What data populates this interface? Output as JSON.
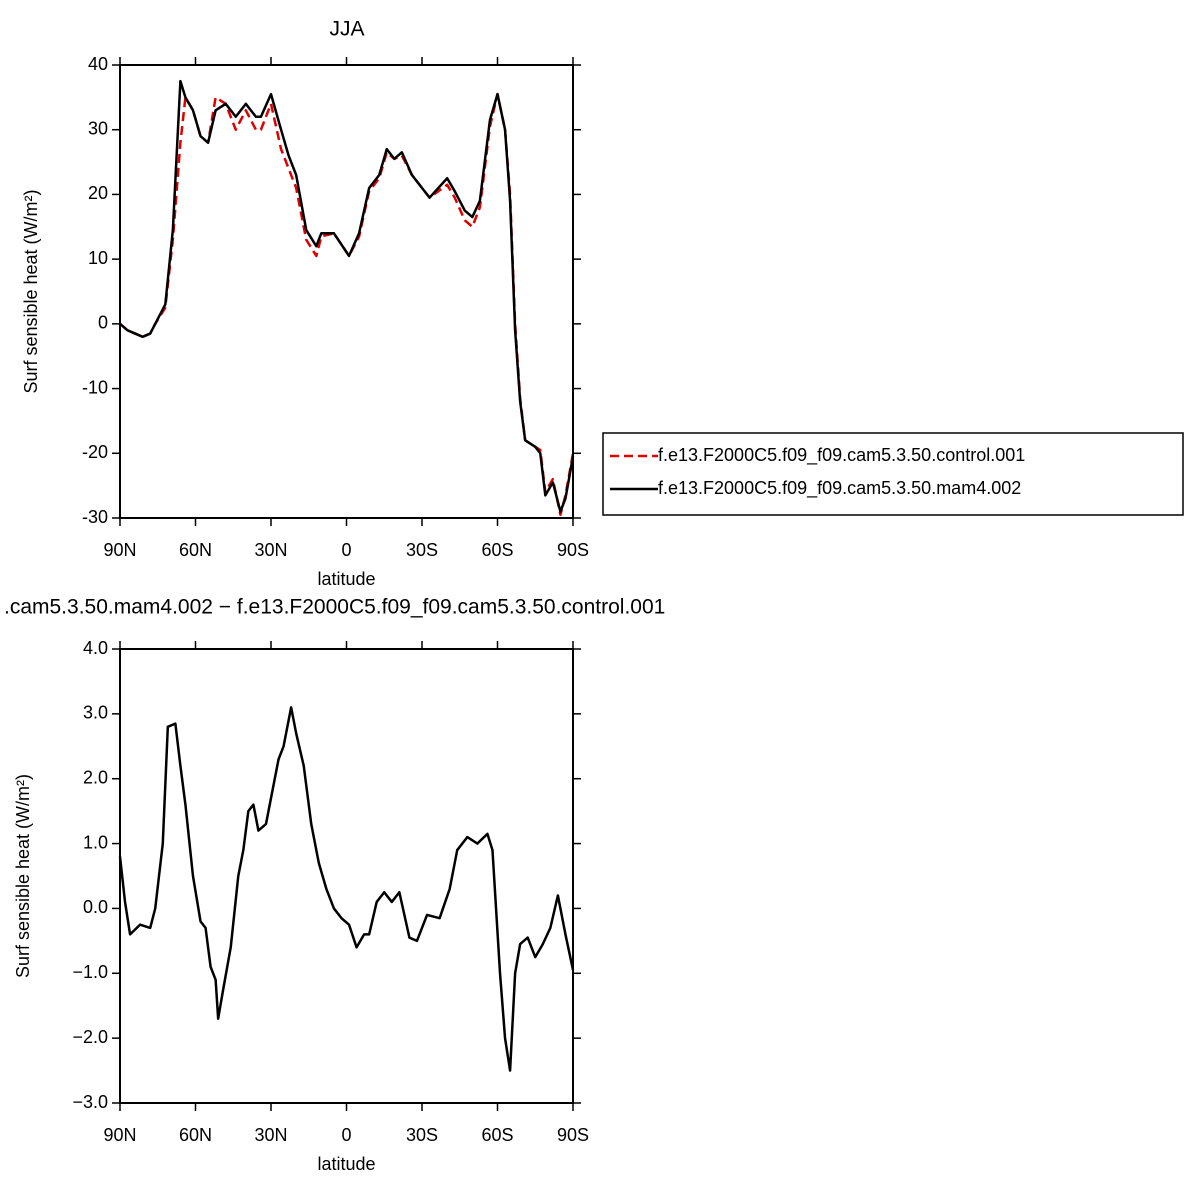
{
  "chart_data": [
    {
      "type": "line",
      "title": "JJA",
      "xlabel": "latitude",
      "ylabel": "Surf sensible heat (W/m²)",
      "xlim": [
        90,
        -90
      ],
      "ylim": [
        -30,
        40
      ],
      "xticks": [
        {
          "value": 90,
          "label": "90N"
        },
        {
          "value": 60,
          "label": "60N"
        },
        {
          "value": 30,
          "label": "30N"
        },
        0,
        {
          "value": -30,
          "label": "30S"
        },
        {
          "value": -60,
          "label": "60S"
        },
        {
          "value": -90,
          "label": "90S"
        }
      ],
      "yticks": [
        -30,
        -20,
        -10,
        0,
        10,
        20,
        30,
        40
      ],
      "legend": "outside-right",
      "x": [
        90,
        87,
        84,
        81,
        78,
        76,
        72,
        69,
        66,
        64,
        61,
        58,
        55,
        52,
        48,
        44,
        40,
        36,
        34,
        30,
        26,
        23,
        20,
        16,
        12,
        10,
        5,
        -1,
        -5,
        -9,
        -13,
        -16,
        -19,
        -22,
        -26,
        -33,
        -40,
        -43,
        -47,
        -50,
        -53,
        -57,
        -60,
        -63,
        -65,
        -67,
        -69,
        -71,
        -75,
        -77,
        -79,
        -82,
        -85,
        -87,
        -90
      ],
      "series": [
        {
          "name": "f.e13.F2000C5.f09_f09.cam5.3.50.control.001",
          "color": "#e00000",
          "dash": "dashed",
          "values": [
            0,
            -1,
            -1.5,
            -2,
            -1.5,
            0,
            2.5,
            13,
            28,
            35,
            33,
            29,
            28,
            35,
            34,
            30,
            33,
            30,
            30,
            34,
            27,
            24,
            21,
            13,
            10.5,
            13.5,
            14,
            10.5,
            13.5,
            20.5,
            22.5,
            26.5,
            25.5,
            26,
            23,
            19.5,
            21.5,
            19.5,
            16,
            15,
            18,
            30.5,
            35.5,
            30,
            20,
            0,
            -11.5,
            -18,
            -19,
            -19.5,
            -26,
            -24,
            -29.5,
            -26.5,
            -20
          ]
        },
        {
          "name": "f.e13.F2000C5.f09_f09.cam5.3.50.mam4.002",
          "color": "#000000",
          "dash": "solid",
          "values": [
            0,
            -1,
            -1.5,
            -2,
            -1.5,
            0,
            3,
            14.5,
            37.5,
            35,
            33,
            29,
            28,
            33,
            34,
            32,
            34,
            32,
            32,
            35.5,
            30,
            26,
            23,
            14.5,
            12,
            14,
            14,
            10.5,
            14,
            21,
            23,
            27,
            25.5,
            26.5,
            23,
            19.5,
            22.5,
            20.5,
            17.5,
            16.5,
            19,
            31.5,
            35.5,
            30,
            19,
            -1,
            -12,
            -18,
            -19,
            -20,
            -26.5,
            -24.5,
            -29,
            -27,
            -20.5
          ]
        }
      ]
    },
    {
      "type": "line",
      "title": ".cam5.3.50.mam4.002 − f.e13.F2000C5.f09_f09.cam5.3.50.control.001",
      "xlabel": "latitude",
      "ylabel": "Surf sensible heat (W/m²)",
      "xlim": [
        90,
        -90
      ],
      "ylim": [
        -3,
        4
      ],
      "xticks": [
        {
          "value": 90,
          "label": "90N"
        },
        {
          "value": 60,
          "label": "60N"
        },
        {
          "value": 30,
          "label": "30N"
        },
        0,
        {
          "value": -30,
          "label": "30S"
        },
        {
          "value": -60,
          "label": "60S"
        },
        {
          "value": -90,
          "label": "90S"
        }
      ],
      "yticks": [
        {
          "value": -3,
          "label": "−3.0"
        },
        {
          "value": -2,
          "label": "−2.0"
        },
        {
          "value": -1,
          "label": "−1.0"
        },
        {
          "value": 0,
          "label": "0.0"
        },
        {
          "value": 1,
          "label": "1.0"
        },
        {
          "value": 2,
          "label": "2.0"
        },
        {
          "value": 3,
          "label": "3.0"
        },
        {
          "value": 4,
          "label": "4.0"
        }
      ],
      "x": [
        90,
        88,
        86,
        82,
        78,
        76,
        73,
        71,
        68,
        66,
        64,
        61,
        58,
        56,
        54,
        52,
        51,
        49,
        46,
        43,
        41,
        39,
        37,
        35,
        32,
        30,
        27,
        25,
        22,
        20,
        17,
        14,
        11,
        8,
        5,
        2,
        -1,
        -4,
        -7,
        -9,
        -12,
        -15,
        -18,
        -21,
        -25,
        -28,
        -32,
        -37,
        -41,
        -44,
        -48,
        -52,
        -56,
        -58,
        -61,
        -63,
        -65,
        -67,
        -69,
        -72,
        -75,
        -78,
        -81,
        -84,
        -87,
        -90
      ],
      "series": [
        {
          "color": "#000000",
          "dash": "solid",
          "values": [
            0.8,
            0.1,
            -0.4,
            -0.25,
            -0.3,
            0,
            1.0,
            2.8,
            2.85,
            2.2,
            1.6,
            0.5,
            -0.2,
            -0.3,
            -0.9,
            -1.1,
            -1.7,
            -1.25,
            -0.6,
            0.5,
            0.9,
            1.5,
            1.6,
            1.2,
            1.3,
            1.7,
            2.3,
            2.5,
            3.1,
            2.7,
            2.2,
            1.3,
            0.7,
            0.3,
            0,
            -0.15,
            -0.25,
            -0.6,
            -0.4,
            -0.4,
            0.1,
            0.25,
            0.1,
            0.25,
            -0.45,
            -0.5,
            -0.1,
            -0.15,
            0.3,
            0.9,
            1.1,
            1.0,
            1.15,
            0.9,
            -1.0,
            -2.0,
            -2.5,
            -1.0,
            -0.55,
            -0.45,
            -0.75,
            -0.55,
            -0.3,
            0.2,
            -0.4,
            -0.95
          ]
        }
      ]
    }
  ]
}
